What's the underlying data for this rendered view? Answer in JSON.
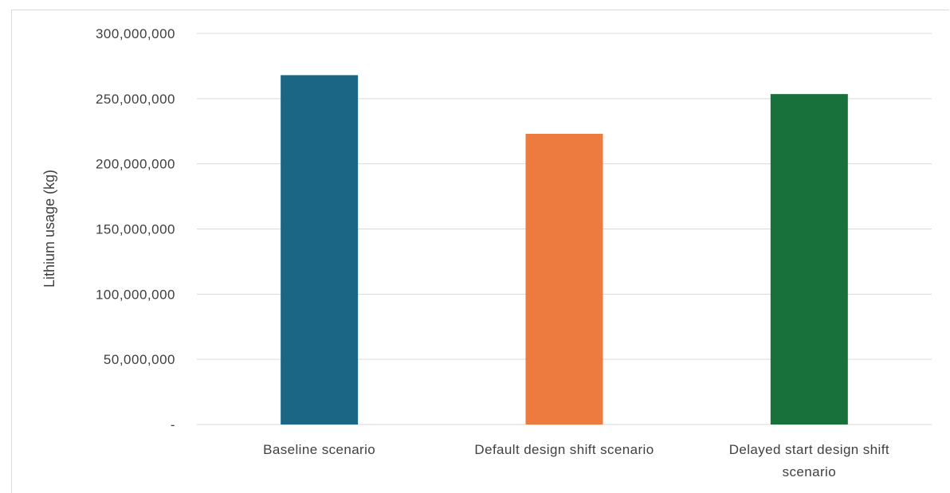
{
  "chart_data": {
    "type": "bar",
    "title": "",
    "xlabel": "",
    "ylabel": "Lithium usage (kg)",
    "categories": [
      [
        "Baseline scenario"
      ],
      [
        "Default design shift scenario"
      ],
      [
        "Delayed start design shift",
        "scenario"
      ]
    ],
    "values": [
      268000000,
      223000000,
      253500000
    ],
    "colors": [
      "#1b6685",
      "#ed7a3f",
      "#18713b"
    ],
    "ylim": [
      0,
      300000000
    ],
    "yticks": [
      0,
      50000000,
      100000000,
      150000000,
      200000000,
      250000000,
      300000000
    ],
    "ytick_labels": [
      "-",
      "50,000,000",
      "100,000,000",
      "150,000,000",
      "200,000,000",
      "250,000,000",
      "300,000,000"
    ],
    "grid": true,
    "legend": "none"
  }
}
